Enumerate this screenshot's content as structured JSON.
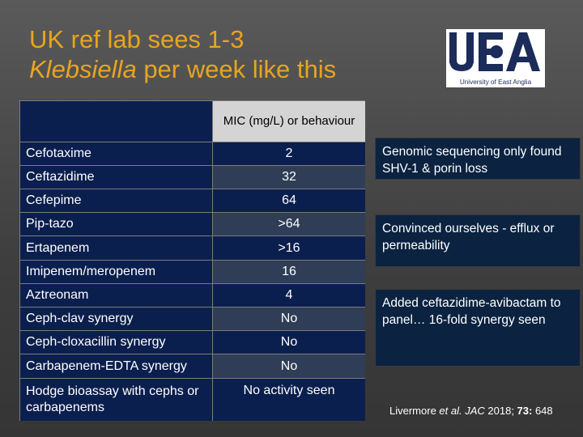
{
  "slide": {
    "title_line1": "UK ref lab sees 1-3",
    "title_line2_italic": "Klebsiella",
    "title_line2_rest": " per week like this"
  },
  "logo": {
    "name": "University of East Anglia logo",
    "letters": "UEA",
    "text": "University of East Anglia"
  },
  "table": {
    "header": "MIC (mg/L) or behaviour",
    "rows": [
      {
        "drug": "Cefotaxime",
        "value": "2"
      },
      {
        "drug": "Ceftazidime",
        "value": "32"
      },
      {
        "drug": "Cefepime",
        "value": "64"
      },
      {
        "drug": "Pip-tazo",
        "value": ">64"
      },
      {
        "drug": "Ertapenem",
        "value": ">16"
      },
      {
        "drug": "Imipenem/meropenem",
        "value": "16"
      },
      {
        "drug": "Aztreonam",
        "value": "4"
      },
      {
        "drug": "Ceph-clav synergy",
        "value": "No"
      },
      {
        "drug": "Ceph-cloxacillin synergy",
        "value": "No"
      },
      {
        "drug": "Carbapenem-EDTA synergy",
        "value": "No"
      },
      {
        "drug": "Hodge bioassay with cephs or carbapenems",
        "value": "No activity seen"
      }
    ]
  },
  "notes": [
    "Genomic sequencing only found SHV-1 & porin loss",
    "Convinced ourselves - efflux or permeability",
    "Added ceftazidime-avibactam to panel… 16-fold synergy seen"
  ],
  "citation": {
    "author": "Livermore ",
    "etal": "et al.",
    "journal": " JAC",
    "year": " 2018; ",
    "volume": "73:",
    "page": " 648"
  },
  "colors": {
    "title": "#e8a51e",
    "table_bg": "#0b1f4e",
    "header_bg": "#d4d4d4",
    "note_bg": "#0b2340"
  }
}
